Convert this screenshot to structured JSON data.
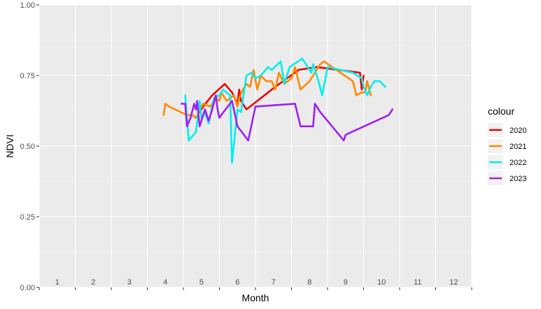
{
  "chart_data": {
    "type": "line",
    "xlabel": "Month",
    "ylabel": "NDVI",
    "xlim": [
      0.5,
      12.5
    ],
    "ylim": [
      0,
      1
    ],
    "y_ticks": [
      "0.00",
      "0.25",
      "0.50",
      "0.75",
      "1.00"
    ],
    "y_tick_values": [
      0,
      0.25,
      0.5,
      0.75,
      1.0
    ],
    "month_labels": [
      "1",
      "2",
      "3",
      "4",
      "5",
      "6",
      "7",
      "8",
      "9",
      "10",
      "11",
      "12"
    ],
    "legend_title": "colour",
    "legend_position": "right",
    "grid": true,
    "series": [
      {
        "name": "2020",
        "color": "#ee0000",
        "points": [
          [
            4.95,
            0.62
          ],
          [
            5.05,
            0.64
          ],
          [
            5.3,
            0.68
          ],
          [
            5.65,
            0.72
          ],
          [
            5.85,
            0.69
          ],
          [
            6.0,
            0.65
          ],
          [
            6.05,
            0.7
          ],
          [
            6.1,
            0.66
          ],
          [
            6.25,
            0.63
          ],
          [
            7.05,
            0.71
          ],
          [
            7.7,
            0.77
          ],
          [
            8.2,
            0.78
          ],
          [
            9.4,
            0.76
          ],
          [
            9.45,
            0.7
          ],
          [
            9.5,
            0.75
          ]
        ]
      },
      {
        "name": "2021",
        "color": "#ff8800",
        "points": [
          [
            3.95,
            0.61
          ],
          [
            4.0,
            0.65
          ],
          [
            4.1,
            0.64
          ],
          [
            4.6,
            0.61
          ],
          [
            4.75,
            0.61
          ],
          [
            4.85,
            0.6
          ],
          [
            5.05,
            0.65
          ],
          [
            5.25,
            0.64
          ],
          [
            5.4,
            0.67
          ],
          [
            5.5,
            0.66
          ],
          [
            5.55,
            0.69
          ],
          [
            5.7,
            0.66
          ],
          [
            5.8,
            0.67
          ],
          [
            5.9,
            0.68
          ],
          [
            6.0,
            0.64
          ],
          [
            6.05,
            0.67
          ],
          [
            6.15,
            0.7
          ],
          [
            6.25,
            0.72
          ],
          [
            6.35,
            0.71
          ],
          [
            6.45,
            0.77
          ],
          [
            6.55,
            0.7
          ],
          [
            6.65,
            0.75
          ],
          [
            6.8,
            0.73
          ],
          [
            6.95,
            0.73
          ],
          [
            7.05,
            0.7
          ],
          [
            7.15,
            0.76
          ],
          [
            7.3,
            0.72
          ],
          [
            7.5,
            0.74
          ],
          [
            7.6,
            0.78
          ],
          [
            7.75,
            0.7
          ],
          [
            8.0,
            0.73
          ],
          [
            8.3,
            0.79
          ],
          [
            8.4,
            0.8
          ],
          [
            9.2,
            0.73
          ],
          [
            9.3,
            0.68
          ],
          [
            9.45,
            0.69
          ],
          [
            9.55,
            0.69
          ],
          [
            9.6,
            0.73
          ],
          [
            9.7,
            0.68
          ]
        ]
      },
      {
        "name": "2022",
        "color": "#00eeee",
        "points": [
          [
            4.55,
            0.68
          ],
          [
            4.65,
            0.52
          ],
          [
            4.85,
            0.55
          ],
          [
            4.95,
            0.66
          ],
          [
            5.0,
            0.6
          ],
          [
            5.1,
            0.62
          ],
          [
            5.2,
            0.58
          ],
          [
            5.35,
            0.67
          ],
          [
            5.5,
            0.68
          ],
          [
            5.6,
            0.7
          ],
          [
            5.7,
            0.69
          ],
          [
            5.8,
            0.68
          ],
          [
            5.85,
            0.44
          ],
          [
            6.0,
            0.63
          ],
          [
            6.1,
            0.62
          ],
          [
            6.25,
            0.75
          ],
          [
            6.4,
            0.76
          ],
          [
            6.5,
            0.74
          ],
          [
            6.65,
            0.75
          ],
          [
            6.85,
            0.78
          ],
          [
            6.95,
            0.77
          ],
          [
            7.2,
            0.8
          ],
          [
            7.3,
            0.72
          ],
          [
            7.45,
            0.78
          ],
          [
            7.8,
            0.81
          ],
          [
            7.95,
            0.78
          ],
          [
            8.05,
            0.76
          ],
          [
            8.1,
            0.79
          ],
          [
            8.25,
            0.73
          ],
          [
            8.35,
            0.68
          ],
          [
            8.5,
            0.78
          ],
          [
            9.2,
            0.76
          ],
          [
            9.45,
            0.74
          ],
          [
            9.5,
            0.71
          ],
          [
            9.6,
            0.68
          ],
          [
            9.7,
            0.71
          ],
          [
            9.8,
            0.73
          ],
          [
            9.95,
            0.73
          ],
          [
            10.1,
            0.71
          ]
        ]
      },
      {
        "name": "2023",
        "color": "#a020f0",
        "points": [
          [
            4.45,
            0.65
          ],
          [
            4.55,
            0.65
          ],
          [
            4.6,
            0.57
          ],
          [
            4.7,
            0.6
          ],
          [
            4.8,
            0.65
          ],
          [
            4.85,
            0.63
          ],
          [
            4.88,
            0.66
          ],
          [
            4.95,
            0.57
          ],
          [
            5.1,
            0.63
          ],
          [
            5.2,
            0.59
          ],
          [
            5.3,
            0.63
          ],
          [
            5.4,
            0.68
          ],
          [
            5.45,
            0.63
          ],
          [
            5.5,
            0.6
          ],
          [
            5.55,
            0.61
          ],
          [
            5.85,
            0.66
          ],
          [
            6.0,
            0.57
          ],
          [
            6.3,
            0.52
          ],
          [
            6.5,
            0.64
          ],
          [
            7.6,
            0.65
          ],
          [
            7.75,
            0.57
          ],
          [
            8.1,
            0.57
          ],
          [
            8.15,
            0.65
          ],
          [
            8.3,
            0.62
          ],
          [
            8.95,
            0.52
          ],
          [
            9.0,
            0.54
          ],
          [
            10.2,
            0.61
          ],
          [
            10.3,
            0.63
          ]
        ]
      }
    ]
  }
}
